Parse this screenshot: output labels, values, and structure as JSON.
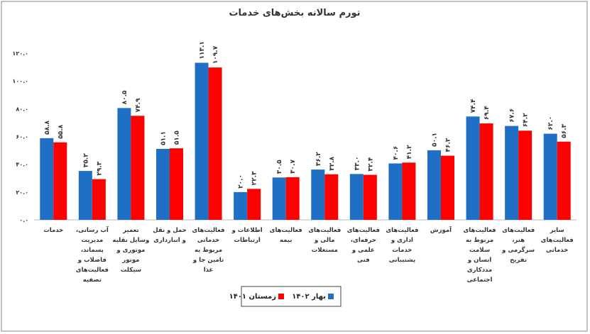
{
  "chart_data": {
    "type": "bar",
    "title": "تورم سالانه بخش‌های خدمات",
    "categories": [
      "خدمات",
      "آب رسانی، مدیریت پسماند، فاضلاب و فعالیت‌های تصفیه",
      "تعمیر وسایل نقلیه موتوری و موتور سیکلت",
      "حمل و نقل و انبارداری",
      "فعالیت‌های خدماتی مربوط به تامین جا و غذا",
      "اطلاعات و ارتباطات",
      "فعالیت‌های بیمه",
      "فعالیت‌های مالی و مستغلات",
      "فعالیت‌های حرفه‌ای، علمی و فنی",
      "فعالیت‌های اداری و خدمات پشتیبانی",
      "آموزش",
      "فعالیت‌های مربوط به سلامت انسان و مددکاری اجتماعی",
      "فعالیت‌های هنر، سرگرمی و تفریح",
      "سایر فعالیت‌های خدماتی"
    ],
    "series": [
      {
        "name": "بهار ۱۴۰۲",
        "color": "#1f6fc5",
        "values": [
          58.8,
          35.2,
          80.5,
          51.1,
          113.1,
          20.0,
          30.5,
          36.2,
          33.0,
          40.6,
          50.1,
          74.4,
          67.6,
          62.0
        ],
        "value_labels": [
          "۵۸.۸",
          "۳۵.۲",
          "۸۰.۵",
          "۵۱.۱",
          "۱۱۳.۱",
          "۲۰.۰",
          "۳۰.۵",
          "۳۶.۲",
          "۳۳.۰",
          "۴۰.۶",
          "۵۰.۱",
          "۷۴.۴",
          "۶۷.۶",
          "۶۲.۰"
        ]
      },
      {
        "name": "زمستان ۱۴۰۱",
        "color": "#ff0000",
        "values": [
          55.8,
          29.3,
          74.9,
          51.5,
          109.7,
          22.3,
          30.7,
          32.8,
          32.4,
          41.2,
          46.2,
          69.4,
          64.2,
          56.3
        ],
        "value_labels": [
          "۵۵.۸",
          "۲۹.۳",
          "۷۴.۹",
          "۵۱.۵",
          "۱۰۹.۷",
          "۲۲.۳",
          "۳۰.۷",
          "۳۲.۸",
          "۳۲.۴",
          "۴۱.۲",
          "۴۶.۲",
          "۶۹.۴",
          "۶۴.۲",
          "۵۶.۳"
        ]
      }
    ],
    "ylim": [
      0,
      120
    ],
    "yticks": [
      {
        "value": 0,
        "label": "۰.۰"
      },
      {
        "value": 20,
        "label": "۲۰.۰"
      },
      {
        "value": 40,
        "label": "۴۰.۰"
      },
      {
        "value": 60,
        "label": "۶۰.۰"
      },
      {
        "value": 80,
        "label": "۸۰.۰"
      },
      {
        "value": 100,
        "label": "۱۰۰.۰"
      },
      {
        "value": 120,
        "label": "۱۲۰.۰"
      }
    ],
    "grid": false
  }
}
